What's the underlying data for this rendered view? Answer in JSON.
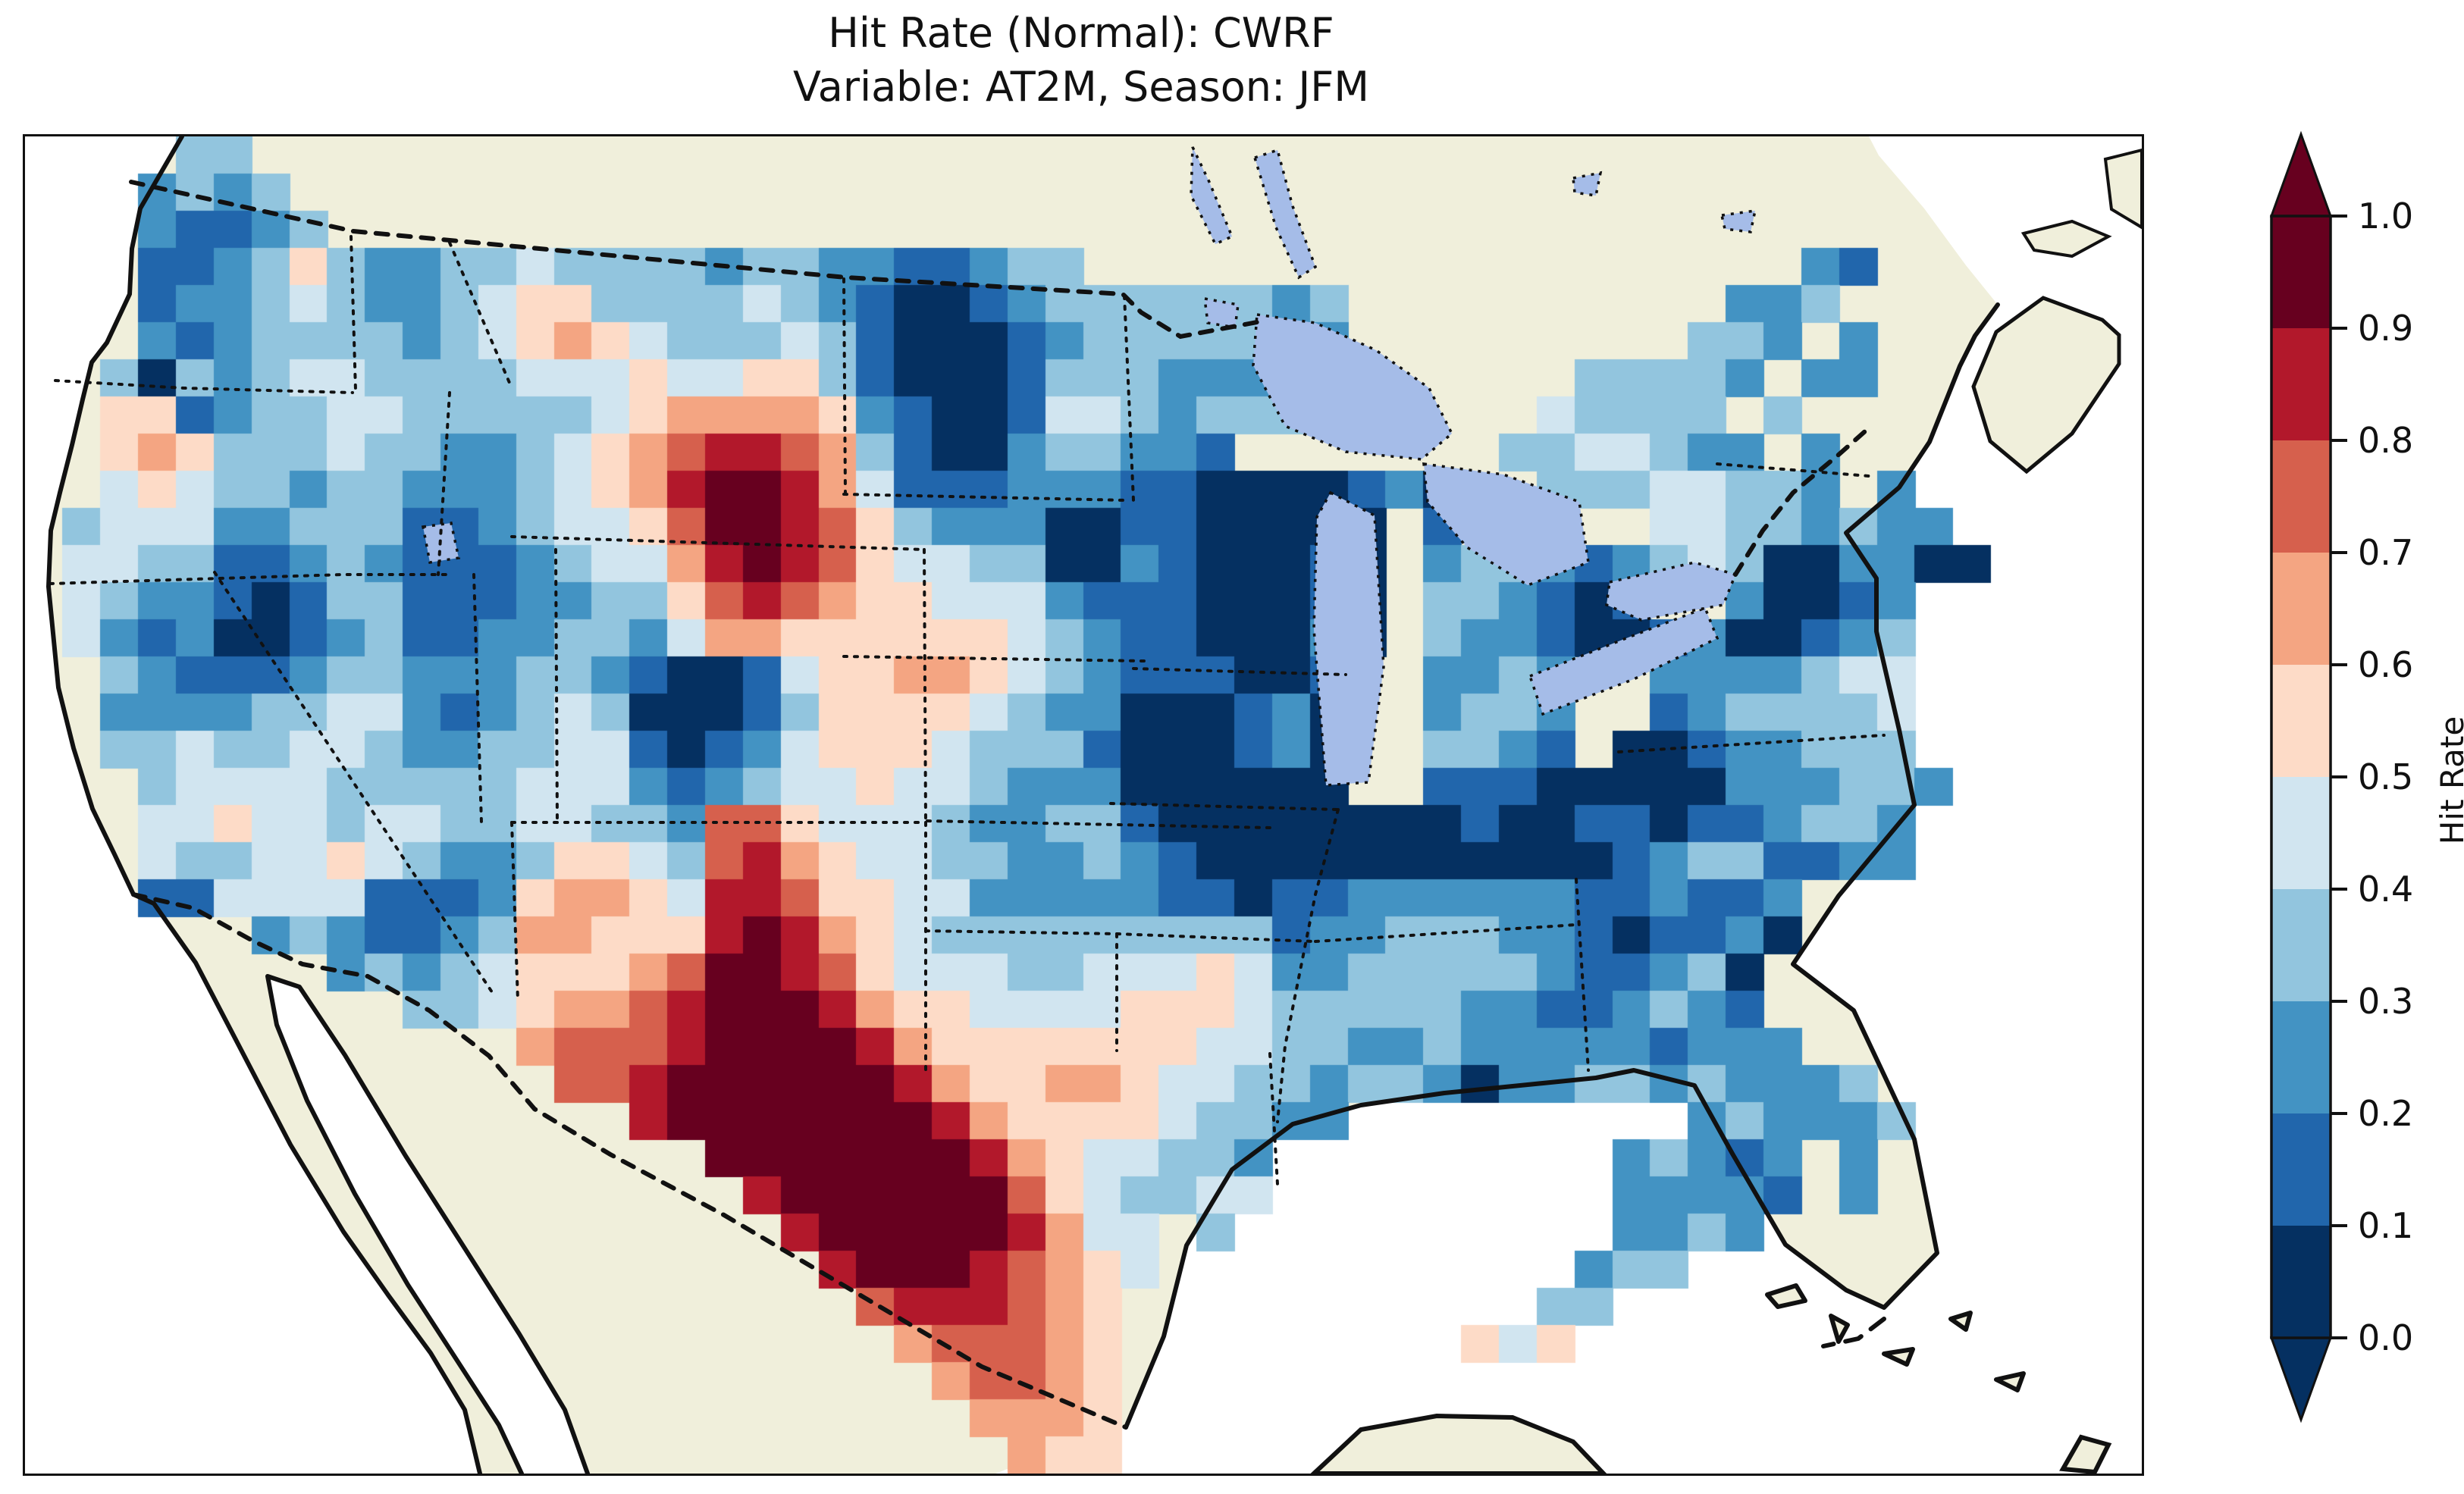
{
  "header": {
    "title_line1": "Hit Rate (Normal): CWRF",
    "title_line2": "Variable: AT2M, Season: JFM"
  },
  "map_style": {
    "ocean_color": "#9ab5e0",
    "land_color": "#f0efdb",
    "lake_color": "#a5bce8",
    "coast_color": "#111111",
    "border_dash_color": "#111111",
    "frame_color": "#111111"
  },
  "colorbar": {
    "axis_label": "Hit Rate",
    "tick_labels": [
      "0.0",
      "0.1",
      "0.2",
      "0.3",
      "0.4",
      "0.5",
      "0.6",
      "0.7",
      "0.8",
      "0.9",
      "1.0"
    ],
    "extend": "both",
    "colors_low_to_high": [
      "#053061",
      "#2166ac",
      "#4393c3",
      "#92c5de",
      "#d1e5f0",
      "#fddbc7",
      "#f4a582",
      "#d6604d",
      "#b2182b",
      "#67001f"
    ]
  },
  "chart_data": {
    "type": "heatmap",
    "title": "Hit Rate (Normal): CWRF — Variable: AT2M, Season: JFM",
    "metric": "Hit Rate",
    "model": "CWRF",
    "variable": "AT2M",
    "season": "JFM",
    "colormap": "RdBu reversed (blue low, red high), 10 discrete bins",
    "bin_edges": [
      0.0,
      0.1,
      0.2,
      0.3,
      0.4,
      0.5,
      0.6,
      0.7,
      0.8,
      0.9,
      1.0
    ],
    "bin_colors": [
      "#053061",
      "#2166ac",
      "#4393c3",
      "#92c5de",
      "#d1e5f0",
      "#fddbc7",
      "#f4a582",
      "#d6604d",
      "#b2182b",
      "#67001f"
    ],
    "legend_position": "right",
    "grid_encoding": "Each row string = one west-to-east row of grid cells over CONUS, north first. Digit d = hit-rate bin [d/10,(d+1)/10). '.' = no data (ocean/Canada/Mexico/lakes).",
    "grid_rows": [
      "....33..............................................",
      "...2323.............................................",
      "...21123............................................",
      "...1123532233433332332211233...................21....",
      "...12234322345533334321001233333323..........223....",
      "...21233332345654333431000123333302.........332.2...",
      "..303234433334445445531000133322223......33332.22...",
      "..551233443333345666652100144323330.....43333.3.....",
      "..565333433223456788763100233221.......3344322.2....",
      "..454332332223456899864111222110000120..33344332.2..",
      ".34442233311234457998753222001100000.1..2..44332322.",
      ".44331123211123446898754433002100010.233212343002200",
      ".43221013311122335787655444211100010.332101..20012..",
      ".42120012311223324665555554321100020.3221001200123..",
      "..321112332223321001455665432111001..2232..2222344..",
      "..222233442123430001355554322000120..2332..1233334..",
      "..334334432233441012455543331000120..3321.00122333..",
      "...34444333334442123445443222000000..11100000222332.",
      "...44544344334433277544432233100000000100110112332..",
      "...43344543223554378654433223210000000000012331122..",
      "...11444411125665488755442222211011222222112112.....",
      "......23211236655589865433333333312233322101120.....",
      "........23234555679987544433444542233333211230......",
      "..........334566789998655444455543333322112321......",
      ".............6777899998655555554433223222221222.....",
      "..............77899999986556654433233202233232223...",
      "................8999999986555543322.........232223..",
      "..................999999986544332.........23212.2...",
      "...................89999997543344.........22221.2...",
      "....................8999998644.3..........2232......",
      ".....................899987654...........233........",
      "......................7888765...........33..........",
      ".......................677765.........545...........",
      "........................67765.......................",
      ".........................6665.......................",
      "..........................655......................."
    ],
    "map_extent": "Continental United States with surrounding Canada, Mexico, Gulf of Mexico, Caribbean",
    "notable_features": [
      "Very low hit rates (0.0–0.1, dark navy) across the Midwest / Ohio Valley / Great Lakes states and North Dakota",
      "High hit rates (0.9–1.0, dark red) over central Texas and the SE Montana / western Dakotas region",
      "Mostly 0.2–0.5 (blues to near-white) across the West Coast, Rockies and Southeast",
      "Scattered pink patches (0.5–0.7) in Nevada, New Mexico, Nebraska and coastal California"
    ]
  }
}
